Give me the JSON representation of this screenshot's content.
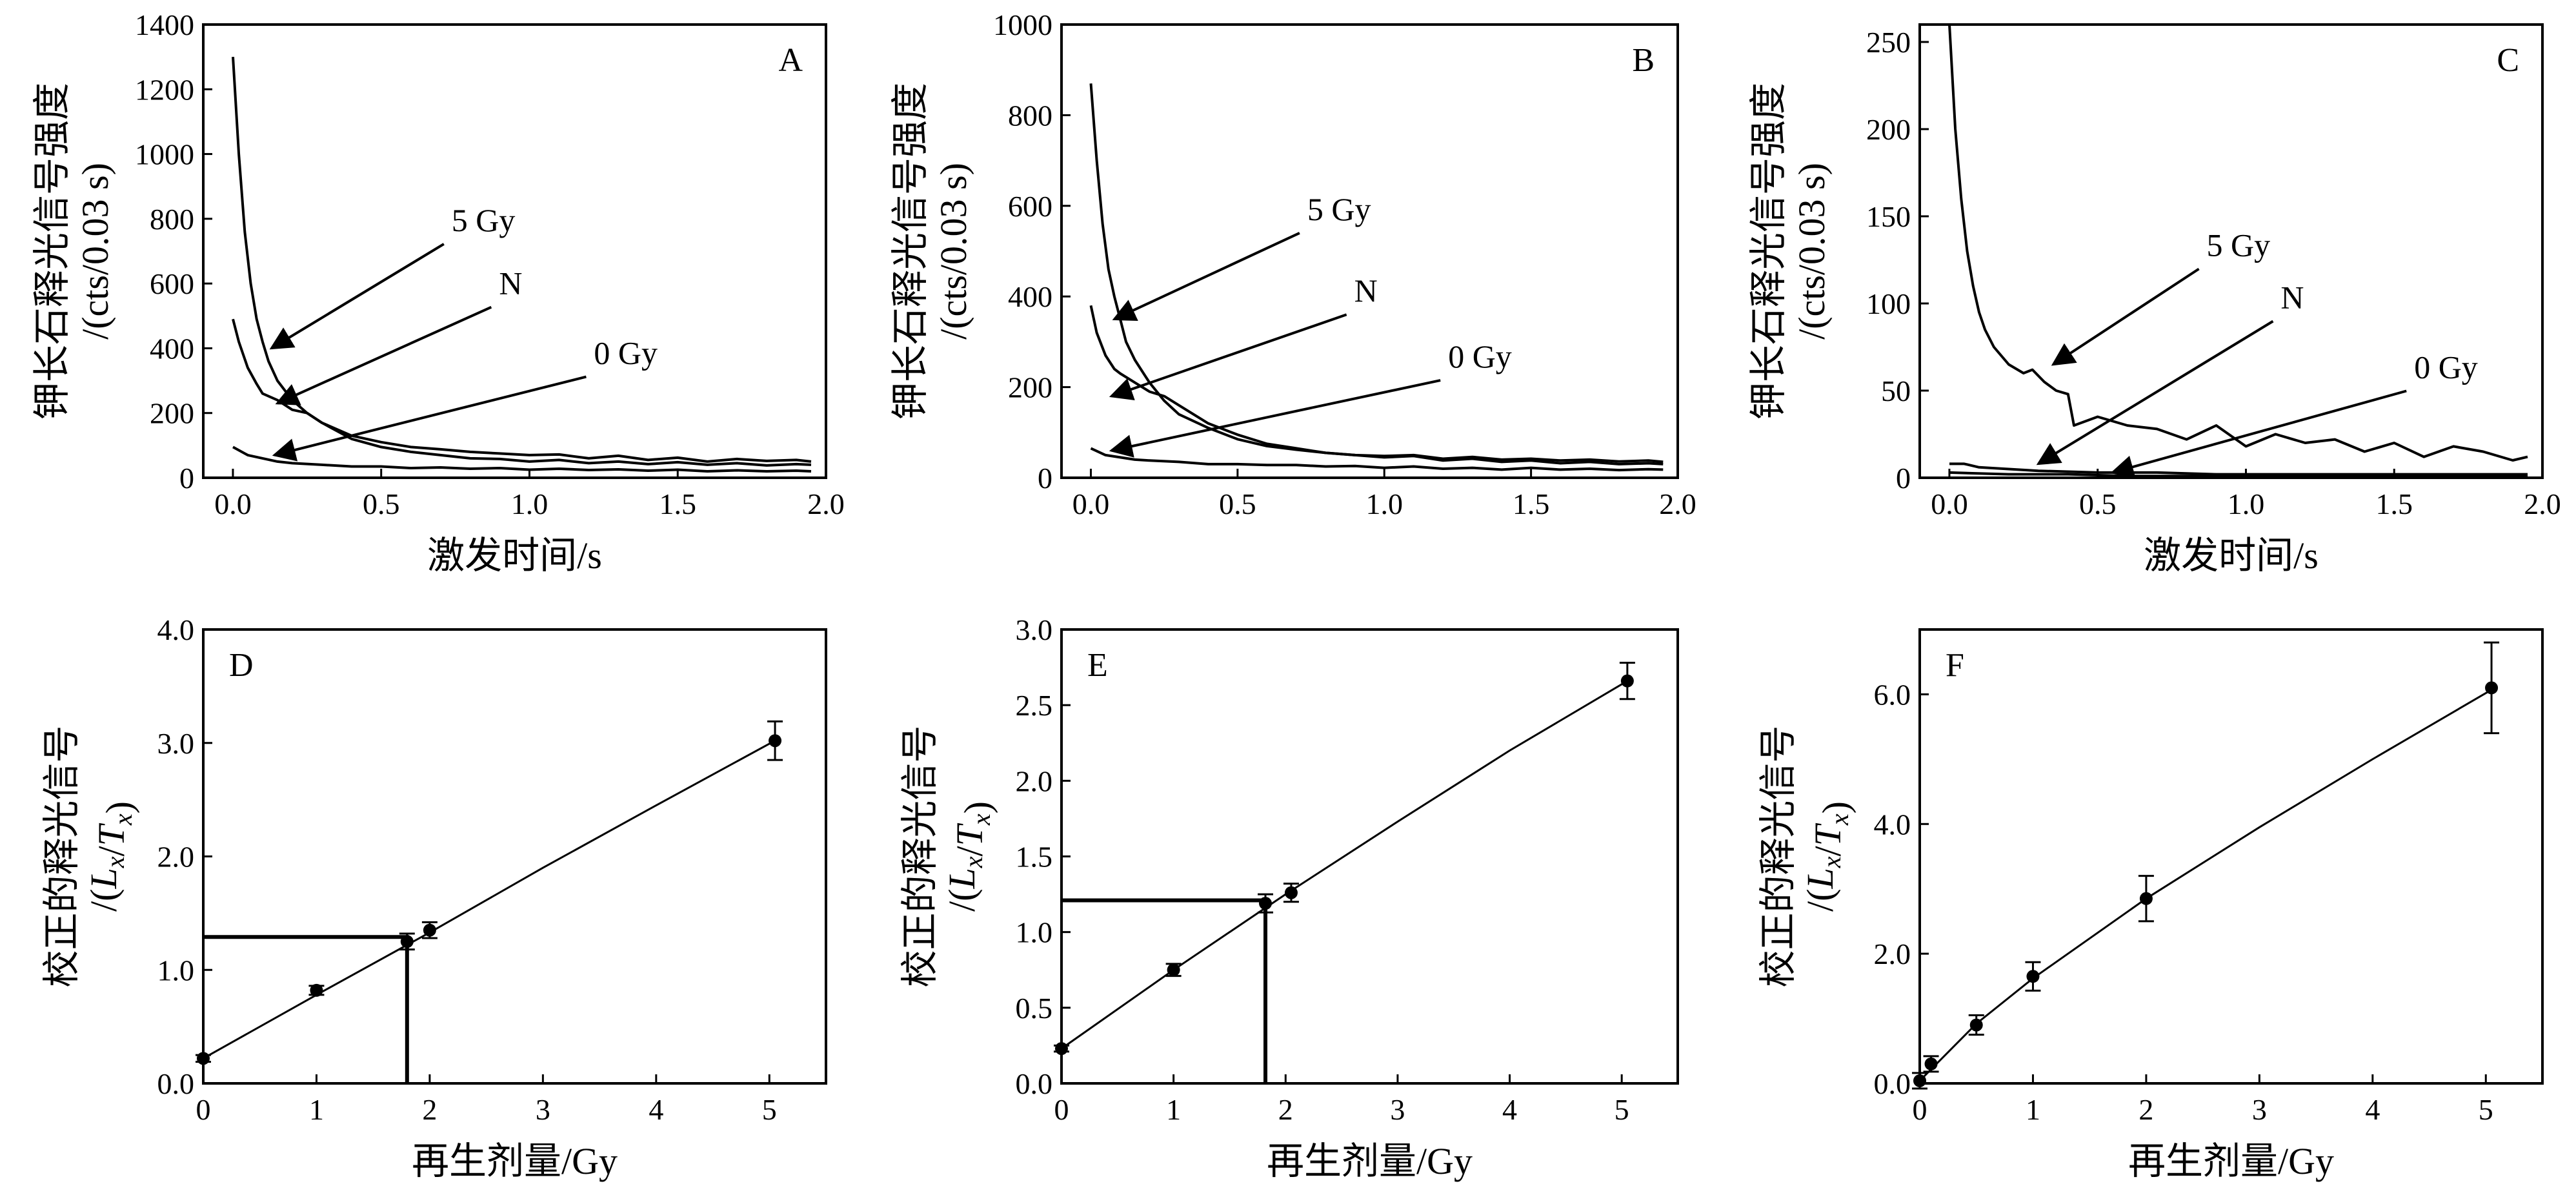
{
  "figure": {
    "panels": [
      "A",
      "B",
      "C",
      "D",
      "E",
      "F"
    ]
  },
  "chart_data": [
    {
      "panel": "A",
      "type": "line",
      "xlabel": "激发时间/s",
      "ylabel": [
        "钾长石释光信号强度",
        "/(cts/0.03 s)"
      ],
      "xlim": [
        -0.1,
        2.0
      ],
      "ylim": [
        0,
        1400
      ],
      "xticks": [
        "0.0",
        "0.5",
        "1.0",
        "1.5",
        "2.0"
      ],
      "yticks": [
        "0",
        "200",
        "400",
        "600",
        "800",
        "1000",
        "1200",
        "1400"
      ],
      "series": [
        {
          "name": "5 Gy",
          "x": [
            0,
            0.02,
            0.04,
            0.06,
            0.08,
            0.1,
            0.12,
            0.15,
            0.2,
            0.25,
            0.3,
            0.4,
            0.5,
            0.6,
            0.7,
            0.8,
            0.9,
            1.0,
            1.1,
            1.2,
            1.3,
            1.4,
            1.5,
            1.6,
            1.7,
            1.8,
            1.9,
            1.95
          ],
          "y": [
            1300,
            1000,
            760,
            600,
            490,
            420,
            360,
            300,
            240,
            200,
            170,
            130,
            110,
            95,
            88,
            80,
            75,
            70,
            72,
            60,
            68,
            55,
            62,
            50,
            58,
            52,
            55,
            50
          ]
        },
        {
          "name": "N",
          "x": [
            0,
            0.02,
            0.05,
            0.08,
            0.1,
            0.15,
            0.2,
            0.25,
            0.3,
            0.4,
            0.5,
            0.6,
            0.7,
            0.8,
            0.9,
            1.0,
            1.1,
            1.2,
            1.3,
            1.4,
            1.5,
            1.6,
            1.7,
            1.8,
            1.9,
            1.95
          ],
          "y": [
            490,
            420,
            340,
            290,
            260,
            240,
            210,
            200,
            170,
            120,
            95,
            80,
            70,
            60,
            58,
            50,
            55,
            45,
            50,
            42,
            48,
            40,
            45,
            38,
            42,
            40
          ]
        },
        {
          "name": "0 Gy",
          "x": [
            0,
            0.05,
            0.1,
            0.15,
            0.2,
            0.3,
            0.4,
            0.5,
            0.6,
            0.7,
            0.8,
            0.9,
            1.0,
            1.1,
            1.2,
            1.3,
            1.4,
            1.5,
            1.6,
            1.7,
            1.8,
            1.9,
            1.95
          ],
          "y": [
            95,
            70,
            60,
            50,
            45,
            40,
            35,
            35,
            30,
            32,
            28,
            30,
            25,
            28,
            24,
            26,
            22,
            25,
            20,
            23,
            20,
            22,
            20
          ]
        }
      ],
      "annotations": [
        {
          "text": "5 Gy",
          "x": 0.72,
          "y": 750,
          "target": [
            0.13,
            400
          ]
        },
        {
          "text": "N",
          "x": 0.88,
          "y": 555,
          "target": [
            0.15,
            230
          ]
        },
        {
          "text": "0 Gy",
          "x": 1.2,
          "y": 340,
          "target": [
            0.14,
            70
          ]
        }
      ]
    },
    {
      "panel": "B",
      "type": "line",
      "xlabel": "",
      "ylabel": [
        "钾长石释光信号强度",
        "/(cts/0.03 s)"
      ],
      "xlim": [
        -0.1,
        2.0
      ],
      "ylim": [
        0,
        1000
      ],
      "xticks": [
        "0.0",
        "0.5",
        "1.0",
        "1.5",
        "2.0"
      ],
      "yticks": [
        "0",
        "200",
        "400",
        "600",
        "800",
        "1000"
      ],
      "series": [
        {
          "name": "5 Gy",
          "x": [
            0,
            0.02,
            0.04,
            0.06,
            0.08,
            0.1,
            0.12,
            0.15,
            0.2,
            0.25,
            0.3,
            0.4,
            0.5,
            0.6,
            0.7,
            0.8,
            0.9,
            1.0,
            1.1,
            1.2,
            1.3,
            1.4,
            1.5,
            1.6,
            1.7,
            1.8,
            1.9,
            1.95
          ],
          "y": [
            870,
            700,
            560,
            460,
            400,
            350,
            300,
            260,
            210,
            170,
            140,
            110,
            85,
            70,
            62,
            55,
            50,
            48,
            50,
            42,
            46,
            40,
            42,
            38,
            40,
            36,
            38,
            35
          ]
        },
        {
          "name": "N",
          "x": [
            0,
            0.02,
            0.05,
            0.08,
            0.1,
            0.15,
            0.2,
            0.25,
            0.3,
            0.4,
            0.5,
            0.6,
            0.7,
            0.8,
            0.9,
            1.0,
            1.1,
            1.2,
            1.3,
            1.4,
            1.5,
            1.6,
            1.7,
            1.8,
            1.9,
            1.95
          ],
          "y": [
            380,
            320,
            270,
            240,
            230,
            210,
            190,
            180,
            160,
            120,
            95,
            75,
            65,
            55,
            50,
            45,
            48,
            38,
            42,
            35,
            38,
            32,
            35,
            30,
            32,
            30
          ]
        },
        {
          "name": "0 Gy",
          "x": [
            0,
            0.05,
            0.1,
            0.15,
            0.2,
            0.3,
            0.4,
            0.5,
            0.6,
            0.7,
            0.8,
            0.9,
            1.0,
            1.1,
            1.2,
            1.3,
            1.4,
            1.5,
            1.6,
            1.7,
            1.8,
            1.9,
            1.95
          ],
          "y": [
            65,
            50,
            45,
            40,
            38,
            35,
            30,
            30,
            28,
            28,
            25,
            26,
            22,
            25,
            20,
            22,
            18,
            22,
            18,
            20,
            17,
            19,
            18
          ]
        }
      ],
      "annotations": [
        {
          "text": "5 Gy",
          "x": 0.72,
          "y": 560,
          "target": [
            0.08,
            350
          ]
        },
        {
          "text": "N",
          "x": 0.88,
          "y": 380,
          "target": [
            0.07,
            180
          ]
        },
        {
          "text": "0 Gy",
          "x": 1.2,
          "y": 235,
          "target": [
            0.07,
            60
          ]
        }
      ]
    },
    {
      "panel": "C",
      "type": "line",
      "xlabel": "激发时间/s",
      "ylabel": [
        "钾长石释光信号强度",
        "/(cts/0.03 s)"
      ],
      "xlim": [
        -0.1,
        2.0
      ],
      "ylim": [
        0,
        260
      ],
      "xticks": [
        "0.0",
        "0.5",
        "1.0",
        "1.5",
        "2.0"
      ],
      "yticks": [
        "0",
        "50",
        "100",
        "150",
        "200",
        "250"
      ],
      "series": [
        {
          "name": "5 Gy",
          "x": [
            0,
            0.02,
            0.04,
            0.06,
            0.08,
            0.1,
            0.12,
            0.15,
            0.2,
            0.25,
            0.28,
            0.32,
            0.36,
            0.4,
            0.42,
            0.5,
            0.6,
            0.7,
            0.8,
            0.9,
            1.0,
            1.1,
            1.2,
            1.3,
            1.4,
            1.5,
            1.6,
            1.7,
            1.8,
            1.9,
            1.95
          ],
          "y": [
            260,
            200,
            160,
            130,
            110,
            95,
            85,
            75,
            65,
            60,
            62,
            55,
            50,
            48,
            30,
            35,
            30,
            28,
            22,
            30,
            18,
            25,
            20,
            22,
            15,
            20,
            12,
            18,
            15,
            10,
            12
          ]
        },
        {
          "name": "N",
          "x": [
            0,
            0.05,
            0.1,
            0.2,
            0.3,
            0.5,
            0.7,
            0.9,
            1.1,
            1.3,
            1.5,
            1.7,
            1.9,
            1.95
          ],
          "y": [
            8,
            8,
            6,
            5,
            4,
            3,
            3,
            2,
            2,
            2,
            2,
            2,
            2,
            2
          ]
        },
        {
          "name": "0 Gy",
          "x": [
            0,
            0.2,
            0.4,
            0.6,
            0.8,
            1.0,
            1.2,
            1.4,
            1.6,
            1.8,
            1.95
          ],
          "y": [
            3,
            2,
            2,
            1,
            1,
            1,
            1,
            1,
            1,
            1,
            1
          ]
        }
      ],
      "annotations": [
        {
          "text": "5 Gy",
          "x": 0.85,
          "y": 125,
          "target": [
            0.35,
            65
          ]
        },
        {
          "text": "N",
          "x": 1.1,
          "y": 95,
          "target": [
            0.3,
            8
          ]
        },
        {
          "text": "0 Gy",
          "x": 1.55,
          "y": 55,
          "target": [
            0.55,
            3
          ]
        }
      ]
    },
    {
      "panel": "D",
      "type": "scatter",
      "xlabel": "再生剂量/Gy",
      "ylabel": [
        "校正的释光信号",
        "/(L_x/T_x)"
      ],
      "xlim": [
        0,
        5.5
      ],
      "ylim": [
        0,
        4.0
      ],
      "xticks": [
        "0",
        "1",
        "2",
        "3",
        "4",
        "5"
      ],
      "yticks": [
        "0.0",
        "1.0",
        "2.0",
        "3.0",
        "4.0"
      ],
      "points": [
        {
          "x": 0,
          "y": 0.22,
          "err": 0.03
        },
        {
          "x": 1.0,
          "y": 0.82,
          "err": 0.04
        },
        {
          "x": 1.8,
          "y": 1.25,
          "err": 0.07
        },
        {
          "x": 2.0,
          "y": 1.35,
          "err": 0.07
        },
        {
          "x": 5.05,
          "y": 3.02,
          "err": 0.17
        }
      ],
      "fit": {
        "x": [
          0,
          1,
          2,
          3,
          4,
          5.05
        ],
        "y": [
          0.22,
          0.78,
          1.33,
          1.9,
          2.45,
          3.02
        ]
      },
      "de": {
        "x": 1.8,
        "y": 1.29
      }
    },
    {
      "panel": "E",
      "type": "scatter",
      "xlabel": "再生剂量/Gy",
      "ylabel": [
        "校正的释光信号",
        "/(L_x/T_x)"
      ],
      "xlim": [
        0,
        5.5
      ],
      "ylim": [
        0,
        3.0
      ],
      "xticks": [
        "0",
        "1",
        "2",
        "3",
        "4",
        "5"
      ],
      "yticks": [
        "0.0",
        "0.5",
        "1.0",
        "1.5",
        "2.0",
        "2.5",
        "3.0"
      ],
      "points": [
        {
          "x": 0,
          "y": 0.23,
          "err": 0.02
        },
        {
          "x": 1.0,
          "y": 0.75,
          "err": 0.04
        },
        {
          "x": 1.82,
          "y": 1.19,
          "err": 0.06
        },
        {
          "x": 2.05,
          "y": 1.26,
          "err": 0.06
        },
        {
          "x": 5.05,
          "y": 2.66,
          "err": 0.12
        }
      ],
      "fit": {
        "x": [
          0,
          1,
          2,
          3,
          4,
          5.05
        ],
        "y": [
          0.23,
          0.75,
          1.25,
          1.73,
          2.2,
          2.66
        ]
      },
      "de": {
        "x": 1.82,
        "y": 1.21
      }
    },
    {
      "panel": "F",
      "type": "scatter",
      "xlabel": "再生剂量/Gy",
      "ylabel": [
        "校正的释光信号",
        "/(L_x/T_x)"
      ],
      "xlim": [
        0,
        5.5
      ],
      "ylim": [
        0,
        7.0
      ],
      "xticks": [
        "0",
        "1",
        "2",
        "3",
        "4",
        "5"
      ],
      "yticks": [
        "0.0",
        "2.0",
        "4.0",
        "6.0"
      ],
      "points": [
        {
          "x": 0,
          "y": 0.04,
          "err": 0.12
        },
        {
          "x": 0.1,
          "y": 0.3,
          "err": 0.12
        },
        {
          "x": 0.5,
          "y": 0.9,
          "err": 0.15
        },
        {
          "x": 1.0,
          "y": 1.65,
          "err": 0.22
        },
        {
          "x": 2.0,
          "y": 2.85,
          "err": 0.35
        },
        {
          "x": 5.05,
          "y": 6.1,
          "err": 0.7
        }
      ],
      "fit": {
        "x": [
          0,
          0.5,
          1,
          2,
          3,
          4,
          5.05
        ],
        "y": [
          0.04,
          0.92,
          1.62,
          2.85,
          3.95,
          5.0,
          6.07
        ]
      }
    }
  ]
}
